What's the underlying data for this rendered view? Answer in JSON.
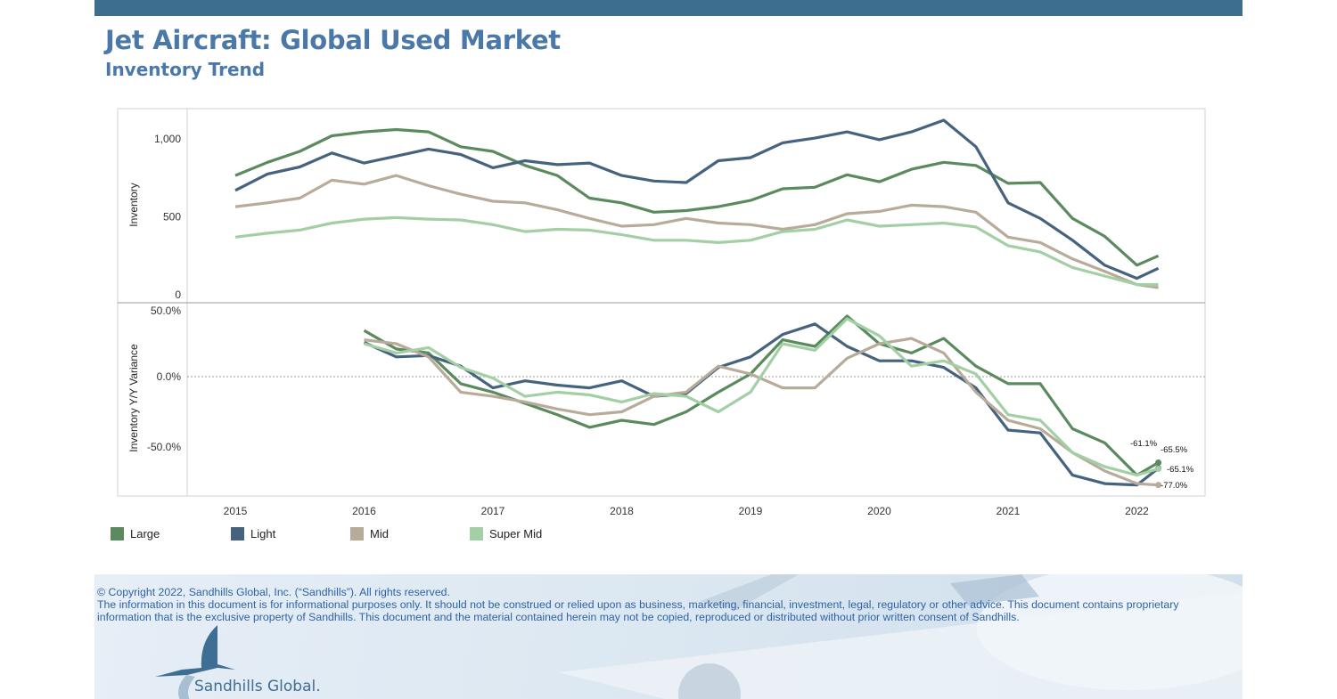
{
  "header": {
    "title": "Jet Aircraft:  Global Used Market",
    "subtitle": "Inventory Trend"
  },
  "chart_data": [
    {
      "type": "line",
      "ylabel": "Inventory",
      "ylim": [
        0,
        1150
      ],
      "yticks": [
        "1,000",
        "500",
        "0"
      ],
      "ytick_values": [
        1000,
        500,
        0
      ],
      "xticks": [
        "2015",
        "2016",
        "2017",
        "2018",
        "2019",
        "2020",
        "2021",
        "2022"
      ],
      "grid": false,
      "x": [
        "2015-01",
        "2015-04",
        "2015-07",
        "2015-10",
        "2016-01",
        "2016-04",
        "2016-07",
        "2016-10",
        "2017-01",
        "2017-04",
        "2017-07",
        "2017-10",
        "2018-01",
        "2018-04",
        "2018-07",
        "2018-10",
        "2019-01",
        "2019-04",
        "2019-07",
        "2019-10",
        "2020-01",
        "2020-04",
        "2020-07",
        "2020-10",
        "2021-01",
        "2021-04",
        "2021-07",
        "2021-10",
        "2022-01",
        "2022-03"
      ],
      "series": [
        {
          "name": "Large",
          "color": "#5b8a5e",
          "values": [
            765,
            850,
            920,
            1020,
            1045,
            1060,
            1045,
            950,
            920,
            830,
            765,
            620,
            590,
            530,
            540,
            565,
            605,
            680,
            690,
            770,
            725,
            805,
            850,
            830,
            715,
            720,
            490,
            375,
            190,
            250
          ]
        },
        {
          "name": "Light",
          "color": "#45637e",
          "values": [
            670,
            775,
            820,
            910,
            845,
            890,
            935,
            900,
            815,
            860,
            835,
            845,
            765,
            730,
            720,
            860,
            880,
            975,
            1005,
            1045,
            995,
            1045,
            1120,
            950,
            590,
            490,
            350,
            190,
            105,
            170
          ]
        },
        {
          "name": "Mid",
          "color": "#b8ab9a",
          "values": [
            565,
            590,
            620,
            735,
            710,
            765,
            700,
            645,
            600,
            590,
            545,
            490,
            440,
            450,
            490,
            460,
            450,
            420,
            450,
            520,
            535,
            575,
            565,
            530,
            370,
            335,
            230,
            150,
            65,
            45
          ]
        },
        {
          "name": "Super Mid",
          "color": "#a3cfa5",
          "values": [
            370,
            395,
            415,
            460,
            485,
            495,
            485,
            480,
            450,
            405,
            420,
            415,
            385,
            350,
            350,
            335,
            350,
            405,
            420,
            480,
            440,
            450,
            460,
            435,
            315,
            275,
            175,
            120,
            65,
            65
          ]
        }
      ]
    },
    {
      "type": "line",
      "ylabel": "Inventory Y/Y Variance",
      "ylim": [
        -85,
        55
      ],
      "yticks": [
        "50.0%",
        "0.0%",
        "-50.0%"
      ],
      "ytick_values": [
        50,
        0,
        -50
      ],
      "reference_line": 0,
      "x": [
        "2016-01",
        "2016-04",
        "2016-07",
        "2016-10",
        "2017-01",
        "2017-04",
        "2017-07",
        "2017-10",
        "2018-01",
        "2018-04",
        "2018-07",
        "2018-10",
        "2019-01",
        "2019-04",
        "2019-07",
        "2019-10",
        "2020-01",
        "2020-04",
        "2020-07",
        "2020-10",
        "2021-01",
        "2021-04",
        "2021-07",
        "2021-10",
        "2022-01",
        "2022-03"
      ],
      "series": [
        {
          "name": "Large",
          "color": "#5b8a5e",
          "values": [
            35,
            21,
            18,
            -5,
            -11,
            -19,
            -27,
            -36,
            -31,
            -34,
            -25,
            -11,
            2,
            28,
            23,
            46,
            25,
            18,
            29,
            8,
            -5,
            -5,
            -37,
            -47,
            -70,
            -61.1
          ],
          "end_label": "-61.1%"
        },
        {
          "name": "Light",
          "color": "#45637e",
          "values": [
            26,
            15,
            16,
            8,
            -8,
            -3,
            -6,
            -8,
            -3,
            -14,
            -12,
            7,
            15,
            32,
            40,
            23,
            12,
            12,
            7,
            -8,
            -38,
            -40,
            -70,
            -76,
            -77,
            -65.1
          ],
          "end_label": "-65.1%"
        },
        {
          "name": "Mid",
          "color": "#b8ab9a",
          "values": [
            28,
            25,
            15,
            -11,
            -14,
            -18,
            -23,
            -27,
            -25,
            -14,
            -11,
            8,
            2,
            -8,
            -8,
            14,
            25,
            29,
            18,
            -11,
            -31,
            -37,
            -54,
            -67,
            -76,
            -77.0
          ],
          "end_label": "-77.0%"
        },
        {
          "name": "Super Mid",
          "color": "#a3cfa5",
          "values": [
            25,
            18,
            22,
            7,
            -1,
            -14,
            -11,
            -13,
            -18,
            -12,
            -14,
            -25,
            -11,
            25,
            20,
            44,
            31,
            8,
            12,
            2,
            -27,
            -31,
            -54,
            -64,
            -70,
            -65.5
          ],
          "end_label": "-65.5%"
        }
      ]
    }
  ],
  "legend": [
    {
      "label": "Large",
      "color": "#5b8a5e"
    },
    {
      "label": "Light",
      "color": "#45637e"
    },
    {
      "label": "Mid",
      "color": "#b8ab9a"
    },
    {
      "label": "Super Mid",
      "color": "#a3cfa5"
    }
  ],
  "footer": {
    "copyright": "© Copyright 2022, Sandhills Global, Inc. (“Sandhills”). All rights reserved.",
    "disclaimer_1": "The information in this document is for informational purposes only.  It should not be construed or relied upon as business, marketing, financial, investment, legal, regulatory or other advice. This document contains proprietary",
    "disclaimer_2": "information that is the exclusive property of Sandhills. This document and the material contained herein may not be copied, reproduced or distributed without prior written consent of Sandhills.",
    "logo_text": "Sandhills Global."
  }
}
